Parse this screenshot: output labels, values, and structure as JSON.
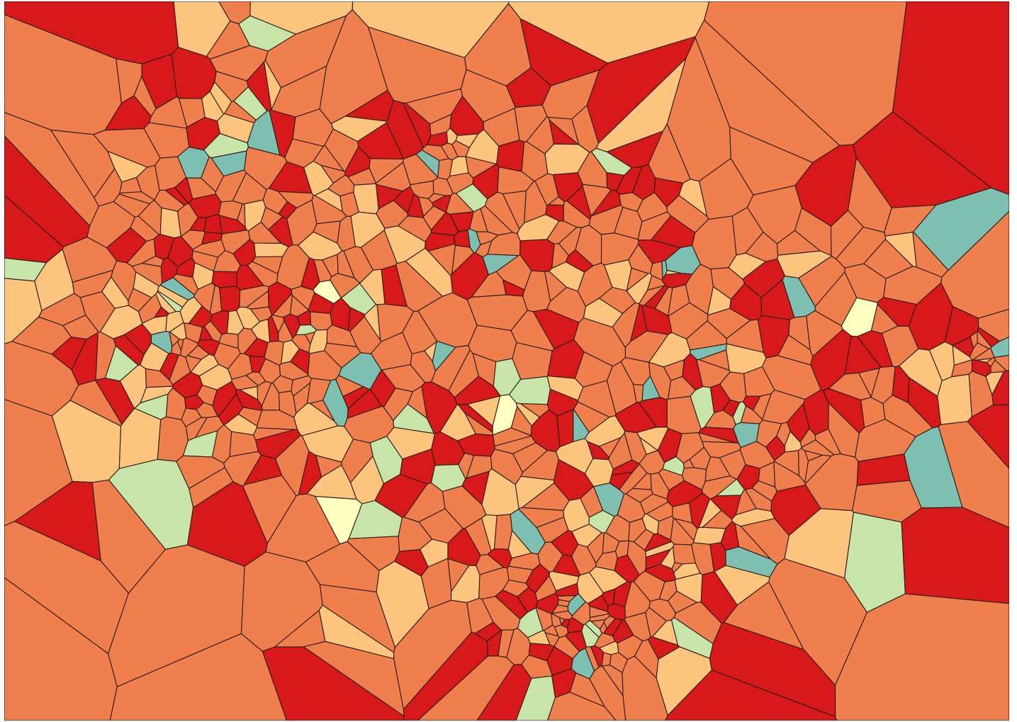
{
  "map": {
    "kind": "voronoi-choropleth",
    "palette": {
      "red": "#d7191c",
      "orange": "#ef7f4c",
      "peach": "#fdc47d",
      "pale-yellow": "#ffffbf",
      "pale-green": "#c7e5a8",
      "teal": "#7dbfb0"
    },
    "category_order": [
      "red",
      "orange",
      "peach",
      "pale-yellow",
      "pale-green",
      "teal"
    ],
    "approx_category_shares": {
      "red": 0.24,
      "orange": 0.52,
      "peach": 0.15,
      "pale-yellow": 0.01,
      "pale-green": 0.05,
      "teal": 0.03
    },
    "cell_border_color": "#2b1a12",
    "legend": "none",
    "title": ""
  }
}
